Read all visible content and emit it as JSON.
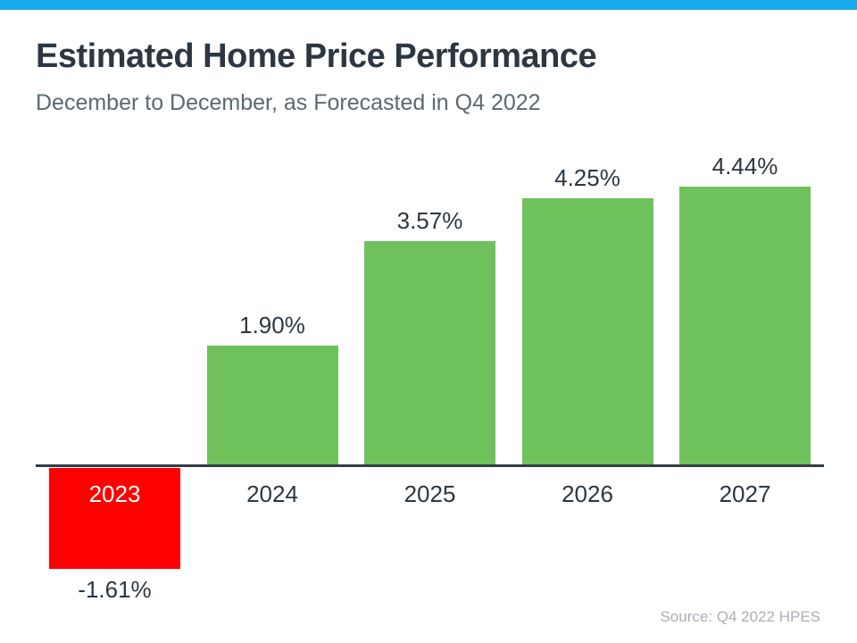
{
  "header": {
    "title": "Estimated Home Price Performance",
    "subtitle": "December to December, as Forecasted in Q4 2022"
  },
  "footer": {
    "source": "Source: Q4 2022 HPES"
  },
  "colors": {
    "accent_bar": "#17aaec",
    "positive_bar": "#6fc15b",
    "negative_bar": "#fe0000",
    "title_text": "#2d3741",
    "subtitle_text": "#5a6973",
    "axis_line": "#333c45",
    "source_text": "#a7b0b7",
    "negative_year_text": "#ffffff"
  },
  "chart_data": {
    "type": "bar",
    "title": "Estimated Home Price Performance",
    "subtitle": "December to December, as Forecasted in Q4 2022",
    "categories": [
      "2023",
      "2024",
      "2025",
      "2026",
      "2027"
    ],
    "values": [
      -1.61,
      1.9,
      3.57,
      4.25,
      4.44
    ],
    "value_labels": [
      "-1.61%",
      "1.90%",
      "3.57%",
      "4.25%",
      "4.44%"
    ],
    "bar_colors": [
      "#fe0000",
      "#6fc15b",
      "#6fc15b",
      "#6fc15b",
      "#6fc15b"
    ],
    "xlabel": "",
    "ylabel": "",
    "ylim": [
      -2,
      5
    ],
    "grid": false,
    "legend_position": "none",
    "baseline": 0,
    "source": "Source: Q4 2022 HPES"
  }
}
